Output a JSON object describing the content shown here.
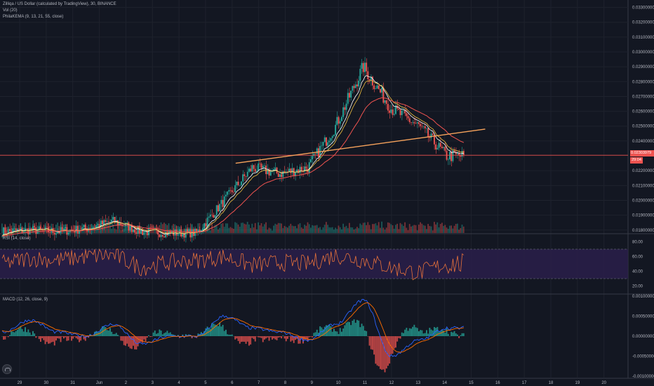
{
  "header": {
    "title": "Zilliqa / US Dollar (calculated by TradingView), 30, BINANCE",
    "volume_label": "Vol (20)",
    "indicator_label": "PhilaKEMA (9, 13, 21, 55, close)"
  },
  "rsi": {
    "label": "RSI (14, close)",
    "upper": 70,
    "lower": 30,
    "ticks": [
      "80.00",
      "60.00",
      "40.00",
      "20.00"
    ]
  },
  "macd": {
    "label": "MACD (12, 26, close, 9)",
    "ticks": [
      "0.00100000",
      "0.00050000",
      "0.00000000",
      "-0.00050000",
      "-0.00100000"
    ]
  },
  "price_axis": {
    "ticks": [
      "0.03300000",
      "0.03200000",
      "0.03100000",
      "0.03000000",
      "0.02900000",
      "0.02800000",
      "0.02700000",
      "0.02600000",
      "0.02500000",
      "0.02400000",
      "0.02200000",
      "0.02100000",
      "0.02000000",
      "0.01900000",
      "0.01800000"
    ],
    "last_price": "0.02303979",
    "countdown": "29:04"
  },
  "time_axis": {
    "labels": [
      "29",
      "30",
      "31",
      "Jun",
      "2",
      "3",
      "4",
      "5",
      "6",
      "7",
      "8",
      "9",
      "10",
      "11",
      "12",
      "13",
      "14",
      "15",
      "16",
      "17",
      "18",
      "19",
      "20"
    ]
  },
  "colors": {
    "background": "#131722",
    "grid": "#1e222d",
    "up": "#26a69a",
    "down": "#ef5350",
    "ema_fast": "#ffffff",
    "ema_mid": "#f0c040",
    "ema_slow": "#ef5350",
    "trendline": "#f7a35c",
    "rsi_line": "#e8723a",
    "rsi_band": "#2a1f4a",
    "macd_line": "#2962ff",
    "signal_line": "#ff6d00",
    "histogram_up": "#26a69a",
    "histogram_down": "#ef5350"
  },
  "chart_data": [
    {
      "type": "candlestick",
      "title": "Zilliqa / US Dollar (calculated by TradingView), 30, BINANCE",
      "interval": "30",
      "ylim": [
        0.0178,
        0.0335
      ],
      "x": [
        "29",
        "30",
        "31",
        "Jun",
        "2",
        "3",
        "4",
        "5",
        "6",
        "7",
        "8",
        "9",
        "10",
        "11",
        "12",
        "13",
        "14"
      ],
      "close_approx": [
        0.0179,
        0.018,
        0.0179,
        0.0181,
        0.0186,
        0.0179,
        0.0178,
        0.0178,
        0.02,
        0.0222,
        0.0218,
        0.0222,
        0.025,
        0.029,
        0.0262,
        0.025,
        0.023
      ],
      "horizontal_line": 0.02303979,
      "trendline": {
        "from": [
          "6",
          0.0225
        ],
        "to": [
          "15",
          0.0248
        ]
      }
    },
    {
      "type": "line",
      "title": "RSI (14, close)",
      "ylim": [
        10,
        90
      ],
      "bands": [
        30,
        70
      ],
      "x": [
        "29",
        "30",
        "31",
        "Jun",
        "2",
        "3",
        "4",
        "5",
        "6",
        "7",
        "8",
        "9",
        "10",
        "11",
        "12",
        "13",
        "14"
      ],
      "values_approx": [
        50,
        58,
        55,
        60,
        62,
        45,
        52,
        55,
        60,
        48,
        52,
        50,
        62,
        55,
        45,
        38,
        50
      ]
    },
    {
      "type": "line",
      "title": "MACD (12, 26, close, 9)",
      "ylim": [
        -0.001,
        0.001
      ],
      "x": [
        "29",
        "30",
        "31",
        "Jun",
        "2",
        "3",
        "4",
        "5",
        "6",
        "7",
        "8",
        "9",
        "10",
        "11",
        "12",
        "13",
        "14"
      ],
      "series": [
        {
          "values_approx": [
            0.0001,
            0.0004,
            0.0001,
            0.0,
            0.0003,
            -0.0002,
            0.0,
            0.0,
            0.0005,
            0.0002,
            0.0001,
            -0.0001,
            0.0003,
            0.0009,
            -0.0005,
            -0.0001,
            0.0002
          ]
        }
      ]
    }
  ]
}
